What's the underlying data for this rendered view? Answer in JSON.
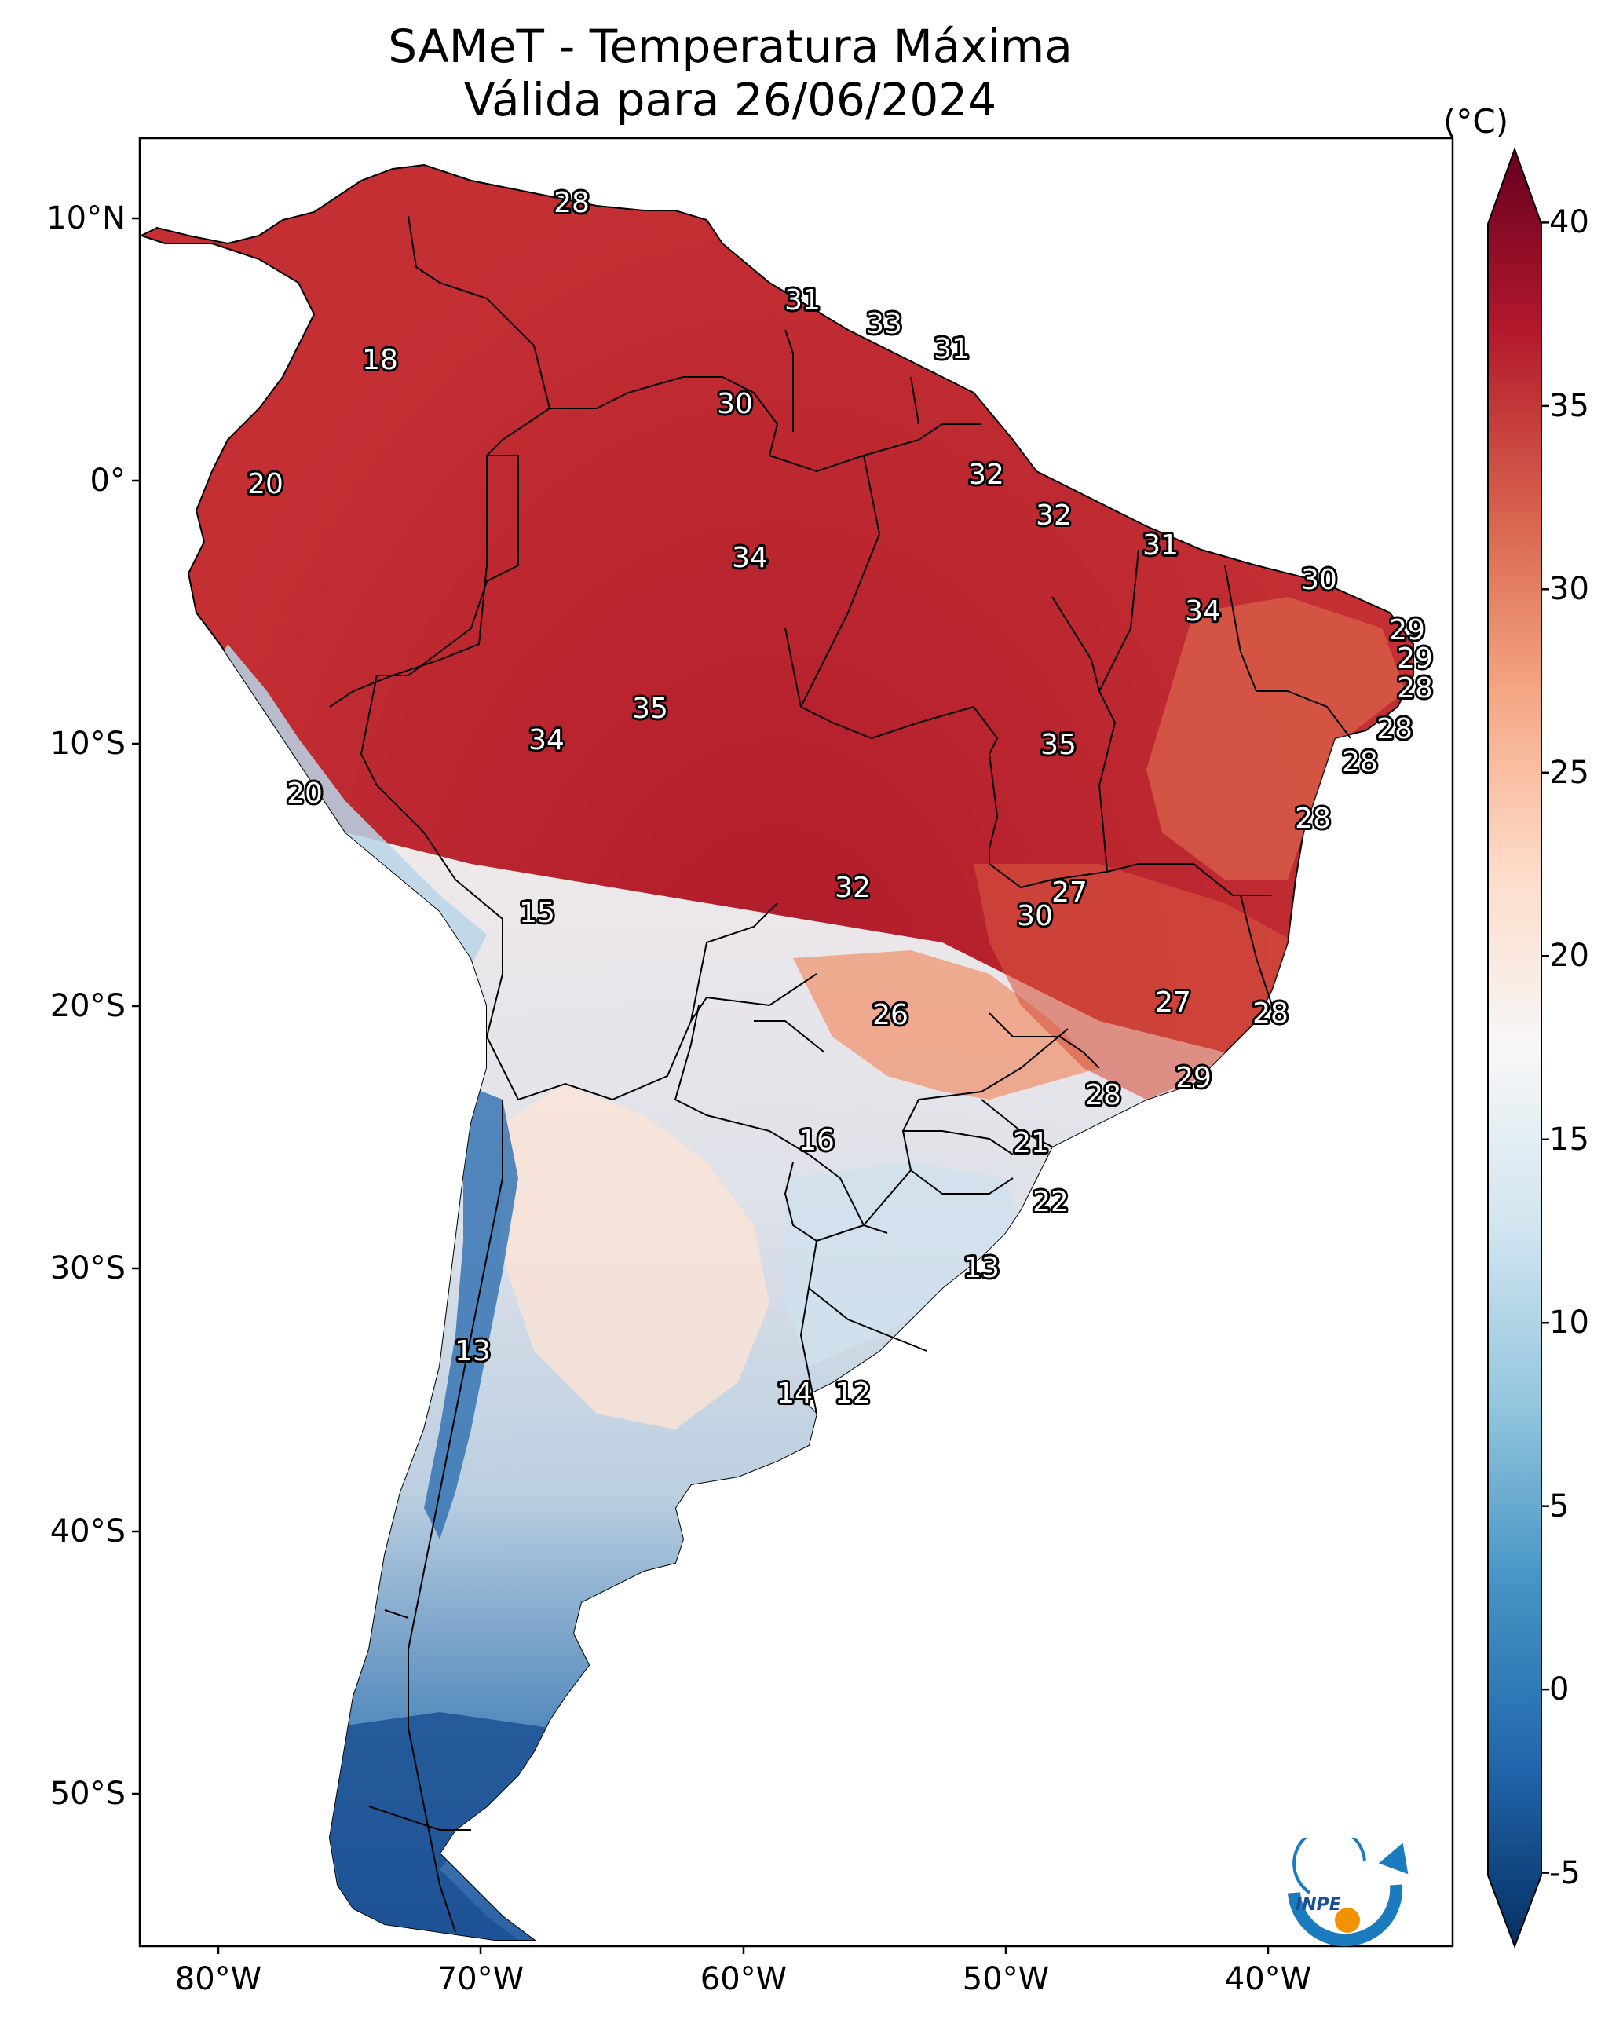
{
  "title": {
    "line1": "SAMeT - Temperatura Máxima",
    "line2": "Válida para 26/06/2024"
  },
  "map": {
    "lon_range": [
      -83,
      -33
    ],
    "lat_range": [
      -56,
      13
    ],
    "lat_ticks": [
      "10°N",
      "0°",
      "10°S",
      "20°S",
      "30°S",
      "40°S",
      "50°S"
    ],
    "lon_ticks": [
      "80°W",
      "70°W",
      "60°W",
      "50°W",
      "40°W"
    ],
    "temperature_labels": [
      {
        "text": "28"
      },
      {
        "text": "18"
      },
      {
        "text": "31"
      },
      {
        "text": "33"
      },
      {
        "text": "31"
      },
      {
        "text": "30"
      },
      {
        "text": "20"
      },
      {
        "text": "32"
      },
      {
        "text": "32"
      },
      {
        "text": "34"
      },
      {
        "text": "31"
      },
      {
        "text": "30"
      },
      {
        "text": "34"
      },
      {
        "text": "29"
      },
      {
        "text": "29"
      },
      {
        "text": "28"
      },
      {
        "text": "35"
      },
      {
        "text": "34"
      },
      {
        "text": "35"
      },
      {
        "text": "28"
      },
      {
        "text": "28"
      },
      {
        "text": "20"
      },
      {
        "text": "28"
      },
      {
        "text": "32"
      },
      {
        "text": "27"
      },
      {
        "text": "30"
      },
      {
        "text": "15"
      },
      {
        "text": "26"
      },
      {
        "text": "27"
      },
      {
        "text": "28"
      },
      {
        "text": "29"
      },
      {
        "text": "28"
      },
      {
        "text": "16"
      },
      {
        "text": "21"
      },
      {
        "text": "22"
      },
      {
        "text": "13"
      },
      {
        "text": "13"
      },
      {
        "text": "14"
      },
      {
        "text": "12"
      }
    ]
  },
  "colorbar": {
    "unit": "(°C)",
    "min": -7,
    "max": 42,
    "ticks": [
      "40",
      "35",
      "30",
      "25",
      "20",
      "15",
      "10",
      "5",
      "0",
      "-5"
    ],
    "colors": [
      "#053061",
      "#2166ac",
      "#4393c3",
      "#92c5de",
      "#d1e5f0",
      "#f7f7f7",
      "#fddbc7",
      "#f4a582",
      "#d6604d",
      "#b2182b",
      "#67001f"
    ]
  },
  "logo": {
    "text": "INPE",
    "arrow_color": "#1a7bbf",
    "dot_color": "#f39200"
  }
}
